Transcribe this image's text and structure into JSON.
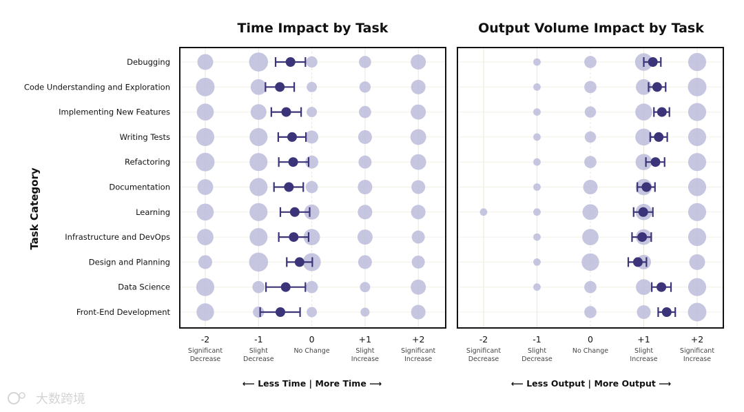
{
  "watermark": "大数跨境",
  "chart_data": [
    {
      "type": "scatter",
      "title": "Time Impact by Task",
      "ylabel": "Task Category",
      "categories": [
        "Debugging",
        "Code Understanding and Exploration",
        "Implementing New Features",
        "Writing Tests",
        "Refactoring",
        "Documentation",
        "Learning",
        "Infrastructure and DevOps",
        "Design and Planning",
        "Data Science",
        "Front-End Development"
      ],
      "x_ticks": [
        -2,
        -1,
        0,
        1,
        2
      ],
      "x_tick_labels": [
        "-2",
        "-1",
        "0",
        "+1",
        "+2"
      ],
      "x_tick_sublabels": [
        "Significant\nDecrease",
        "Slight\nDecrease",
        "No Change",
        "Slight\nIncrease",
        "Significant\nIncrease"
      ],
      "xlim": [
        -2.5,
        2.5
      ],
      "direction_left": "Less Time",
      "direction_right": "More Time",
      "response_share": [
        [
          0.1,
          0.16,
          0.04,
          0.05,
          0.09
        ],
        [
          0.15,
          0.1,
          0.03,
          0.04,
          0.08
        ],
        [
          0.12,
          0.1,
          0.03,
          0.05,
          0.09
        ],
        [
          0.14,
          0.14,
          0.06,
          0.07,
          0.1
        ],
        [
          0.15,
          0.14,
          0.06,
          0.06,
          0.1
        ],
        [
          0.1,
          0.14,
          0.05,
          0.08,
          0.07
        ],
        [
          0.12,
          0.14,
          0.09,
          0.08,
          0.08
        ],
        [
          0.11,
          0.14,
          0.11,
          0.09,
          0.06
        ],
        [
          0.07,
          0.16,
          0.14,
          0.07,
          0.06
        ],
        [
          0.14,
          0.05,
          0.05,
          0.03,
          0.09
        ],
        [
          0.13,
          0.04,
          0.03,
          0.02,
          0.08
        ]
      ],
      "means": [
        -0.4,
        -0.6,
        -0.48,
        -0.37,
        -0.35,
        -0.43,
        -0.32,
        -0.34,
        -0.23,
        -0.49,
        -0.59
      ],
      "ci_lower": [
        -0.68,
        -0.87,
        -0.76,
        -0.63,
        -0.62,
        -0.71,
        -0.59,
        -0.62,
        -0.47,
        -0.86,
        -0.97
      ],
      "ci_upper": [
        -0.12,
        -0.33,
        -0.2,
        -0.11,
        -0.06,
        -0.16,
        -0.04,
        -0.06,
        0.01,
        -0.12,
        -0.22
      ]
    },
    {
      "type": "scatter",
      "title": "Output Volume Impact by Task",
      "categories": [
        "Debugging",
        "Code Understanding and Exploration",
        "Implementing New Features",
        "Writing Tests",
        "Refactoring",
        "Documentation",
        "Learning",
        "Infrastructure and DevOps",
        "Design and Planning",
        "Data Science",
        "Front-End Development"
      ],
      "x_ticks": [
        -2,
        -1,
        0,
        1,
        2
      ],
      "x_tick_labels": [
        "-2",
        "-1",
        "0",
        "+1",
        "+2"
      ],
      "x_tick_sublabels": [
        "Significant\nDecrease",
        "Slight\nDecrease",
        "No Change",
        "Slight\nIncrease",
        "Significant\nIncrease"
      ],
      "xlim": [
        -2.5,
        2.5
      ],
      "direction_left": "Less Output",
      "direction_right": "More Output",
      "response_share": [
        [
          0.0,
          0.01,
          0.05,
          0.13,
          0.14
        ],
        [
          0.0,
          0.01,
          0.05,
          0.1,
          0.15
        ],
        [
          0.0,
          0.01,
          0.04,
          0.12,
          0.14
        ],
        [
          0.0,
          0.01,
          0.04,
          0.12,
          0.14
        ],
        [
          0.0,
          0.01,
          0.05,
          0.11,
          0.14
        ],
        [
          0.0,
          0.01,
          0.08,
          0.11,
          0.14
        ],
        [
          0.01,
          0.01,
          0.1,
          0.11,
          0.14
        ],
        [
          0.0,
          0.01,
          0.11,
          0.1,
          0.14
        ],
        [
          0.0,
          0.01,
          0.13,
          0.08,
          0.1
        ],
        [
          0.0,
          0.01,
          0.05,
          0.1,
          0.14
        ],
        [
          0.0,
          0.0,
          0.05,
          0.07,
          0.15
        ]
      ],
      "means": [
        1.17,
        1.25,
        1.34,
        1.28,
        1.22,
        1.05,
        0.99,
        0.97,
        0.89,
        1.33,
        1.43
      ],
      "ci_lower": [
        1.0,
        1.09,
        1.19,
        1.12,
        1.04,
        0.88,
        0.81,
        0.78,
        0.71,
        1.15,
        1.27
      ],
      "ci_upper": [
        1.32,
        1.41,
        1.48,
        1.44,
        1.39,
        1.21,
        1.17,
        1.14,
        1.05,
        1.51,
        1.59
      ]
    }
  ]
}
